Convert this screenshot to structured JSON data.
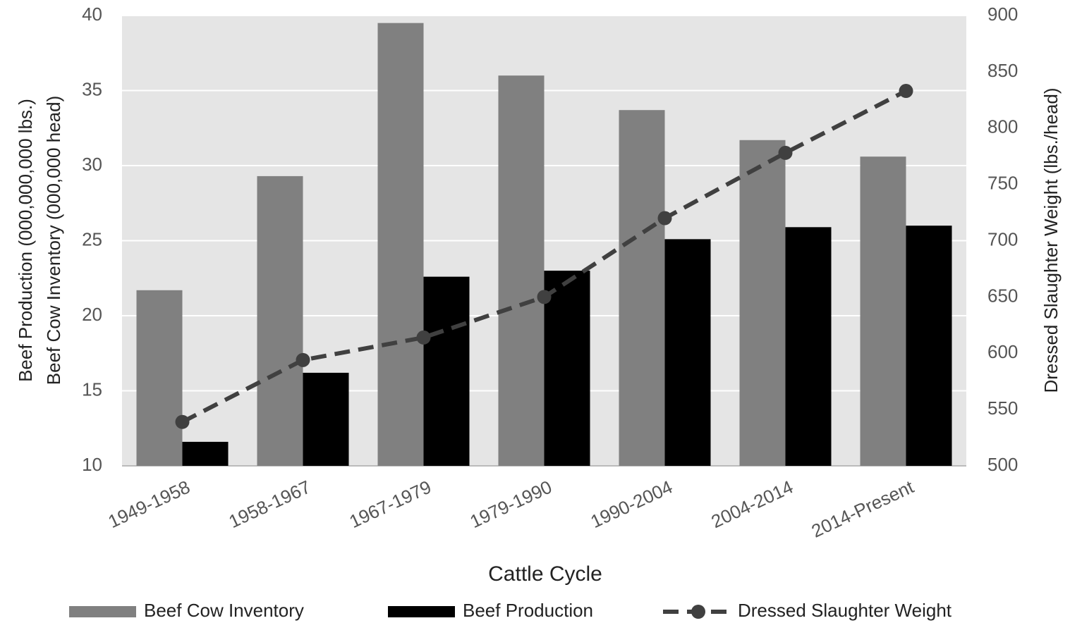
{
  "chart_data": {
    "type": "bar",
    "xlabel": "Cattle Cycle",
    "ylabel": [
      "Beef Production (000,000,000 lbs.)",
      "Beef Cow Inventory (000,000 head)"
    ],
    "y2label": "Dressed Slaughter Weight (lbs./head)",
    "categories": [
      "1949-1958",
      "1958-1967",
      "1967-1979",
      "1979-1990",
      "1990-2004",
      "2004-2014",
      "2014-Present"
    ],
    "series": [
      {
        "name": "Beef Cow Inventory",
        "color": "#808080",
        "type": "bar",
        "values": [
          21.7,
          29.3,
          39.5,
          36.0,
          33.7,
          31.7,
          30.6
        ]
      },
      {
        "name": "Beef Production",
        "color": "#000000",
        "type": "bar",
        "values": [
          11.6,
          16.2,
          22.6,
          23.0,
          25.1,
          25.9,
          26.0
        ]
      },
      {
        "name": "Dressed Slaughter Weight",
        "color": "#404040",
        "type": "line",
        "axis": "y2",
        "values": [
          539,
          594,
          614,
          650,
          720,
          778,
          833
        ]
      }
    ],
    "ylim": [
      10,
      40
    ],
    "yticks": [
      10,
      15,
      20,
      25,
      30,
      35,
      40
    ],
    "y2lim": [
      500,
      900
    ],
    "y2ticks": [
      500,
      550,
      600,
      650,
      700,
      750,
      800,
      850,
      900
    ],
    "grid": true,
    "legend": "bottom"
  }
}
